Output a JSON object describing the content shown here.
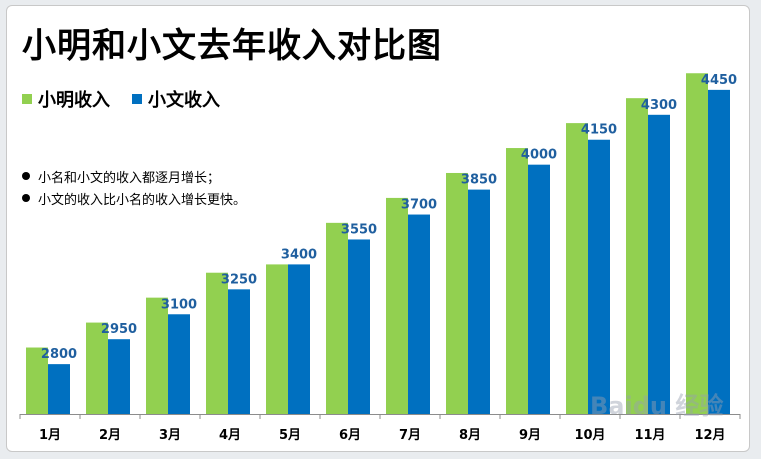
{
  "chart_data": {
    "type": "bar",
    "title": "小明和小文去年收入对比图",
    "categories": [
      "1月",
      "2月",
      "3月",
      "4月",
      "5月",
      "6月",
      "7月",
      "8月",
      "9月",
      "10月",
      "11月",
      "12月"
    ],
    "series": [
      {
        "name": "小明收入",
        "color": "#92d050",
        "values": [
          2900,
          3050,
          3200,
          3350,
          3400,
          3650,
          3800,
          3950,
          4100,
          4250,
          4400,
          4550
        ]
      },
      {
        "name": "小文收入",
        "color": "#0070c0",
        "values": [
          2800,
          2950,
          3100,
          3250,
          3400,
          3550,
          3700,
          3850,
          4000,
          4150,
          4300,
          4450
        ]
      }
    ],
    "ylim": [
      2500,
      4750
    ],
    "grid": false,
    "legend_position": "top-left",
    "data_labels_series": "小文收入",
    "notes": [
      "小名和小文的收入都逐月增长；",
      "小文的收入比小名的收入增长更快。"
    ]
  },
  "watermark": "Baidu 经验"
}
